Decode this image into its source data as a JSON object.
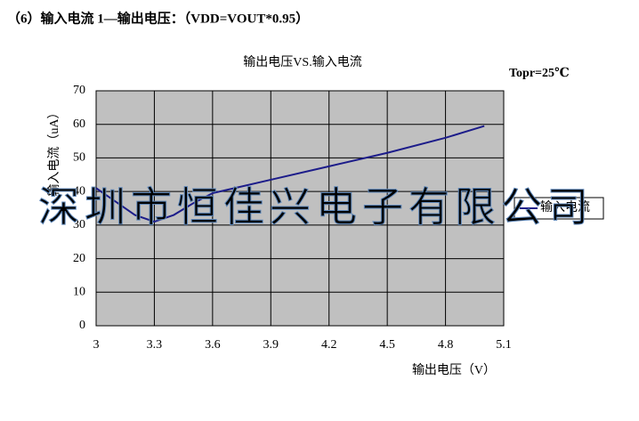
{
  "header": "（6）输入电流 1—输出电压：（VDD=VOUT*0.95）",
  "chart_data": {
    "type": "line",
    "title": "输出电压VS.输入电流",
    "annotation": "Topr=25℃",
    "x_label": "输出电压（V）",
    "y_label": "输入电流（uA）",
    "x": [
      3.0,
      3.1,
      3.2,
      3.3,
      3.4,
      3.5,
      3.6,
      3.9,
      4.2,
      4.5,
      4.8,
      5.0
    ],
    "series": [
      {
        "name": "输入电流",
        "color": "#1c1c8a",
        "values": [
          41,
          37,
          33,
          31,
          33,
          36.5,
          39.5,
          43.5,
          47.5,
          51.5,
          56,
          59.5
        ]
      }
    ],
    "xlim": [
      3,
      5.1
    ],
    "xticks": [
      3,
      3.3,
      3.6,
      3.9,
      4.2,
      4.5,
      4.8,
      5.1
    ],
    "ylim": [
      0,
      70
    ],
    "yticks": [
      0,
      10,
      20,
      30,
      40,
      50,
      60,
      70
    ],
    "grid": true,
    "legend": "right",
    "plot_background": "#c0c0c0",
    "watermark": "深圳市恒佳兴电子有限公司"
  }
}
